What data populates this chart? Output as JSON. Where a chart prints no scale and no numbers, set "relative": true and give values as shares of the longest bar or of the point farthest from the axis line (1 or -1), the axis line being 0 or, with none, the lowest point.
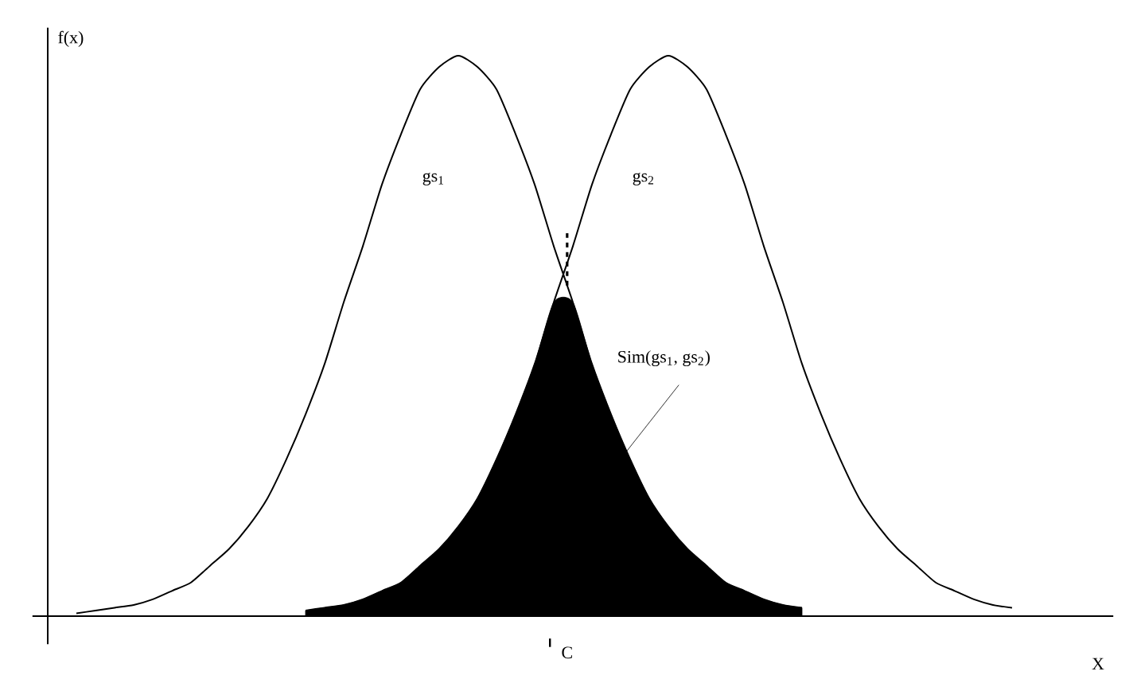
{
  "chart_data": {
    "type": "line",
    "relative": true,
    "xlabel": "X",
    "ylabel": "f(x)",
    "categories": [
      null,
      null,
      null,
      null,
      null,
      null,
      null,
      null,
      null,
      null,
      null,
      null,
      null,
      null,
      null,
      null,
      null,
      null,
      null,
      null,
      null,
      null,
      null,
      null,
      null,
      null,
      null,
      null,
      null,
      null,
      null,
      null,
      null,
      null,
      null,
      null,
      null,
      null,
      null,
      null,
      null,
      null,
      null,
      null,
      null,
      null,
      null,
      null,
      null,
      null,
      null,
      null
    ],
    "series": [
      {
        "name": "gs$_{1}$",
        "color": "#000000",
        "values": [
          0.005,
          0.01,
          0.015,
          0.02,
          0.03,
          0.045,
          0.06,
          0.09,
          0.12,
          0.16,
          0.21,
          0.28,
          0.36,
          0.45,
          0.56,
          0.66,
          0.77,
          0.86,
          0.94,
          0.98,
          1.0,
          0.98,
          0.94,
          0.86,
          0.77,
          0.66,
          0.56,
          0.45,
          0.36,
          0.28,
          0.21,
          0.16,
          0.12,
          0.09,
          0.06,
          0.045,
          0.03,
          0.02,
          0.015,
          null,
          null,
          null,
          null,
          null,
          null,
          null,
          null,
          null,
          null,
          null,
          null,
          null
        ]
      },
      {
        "name": "gs$_{2}$",
        "color": "#000000",
        "values": [
          null,
          null,
          null,
          null,
          null,
          null,
          null,
          null,
          null,
          null,
          null,
          null,
          0.01,
          0.015,
          0.02,
          0.03,
          0.045,
          0.06,
          0.09,
          0.12,
          0.16,
          0.21,
          0.28,
          0.36,
          0.45,
          0.56,
          0.66,
          0.77,
          0.86,
          0.94,
          0.98,
          1.0,
          0.98,
          0.94,
          0.86,
          0.77,
          0.66,
          0.56,
          0.45,
          0.36,
          0.28,
          0.21,
          0.16,
          0.12,
          0.09,
          0.06,
          0.045,
          0.03,
          0.02,
          0.015,
          null,
          null
        ]
      },
      {
        "type": "area",
        "color": "#000000",
        "values": [
          null,
          null,
          null,
          null,
          null,
          null,
          null,
          null,
          null,
          null,
          null,
          null,
          0.01,
          0.015,
          0.02,
          0.03,
          0.045,
          0.06,
          0.09,
          0.12,
          0.16,
          0.21,
          0.28,
          0.36,
          0.45,
          0.56,
          0.56,
          0.45,
          0.36,
          0.28,
          0.21,
          0.16,
          0.12,
          0.09,
          0.06,
          0.045,
          0.03,
          0.02,
          0.015,
          null,
          null,
          null,
          null,
          null,
          null,
          null,
          null,
          null,
          null,
          null,
          null,
          null
        ]
      }
    ],
    "annotations": [
      "Sim(gs$_{1}$, gs$_{2}$)",
      "C"
    ]
  }
}
